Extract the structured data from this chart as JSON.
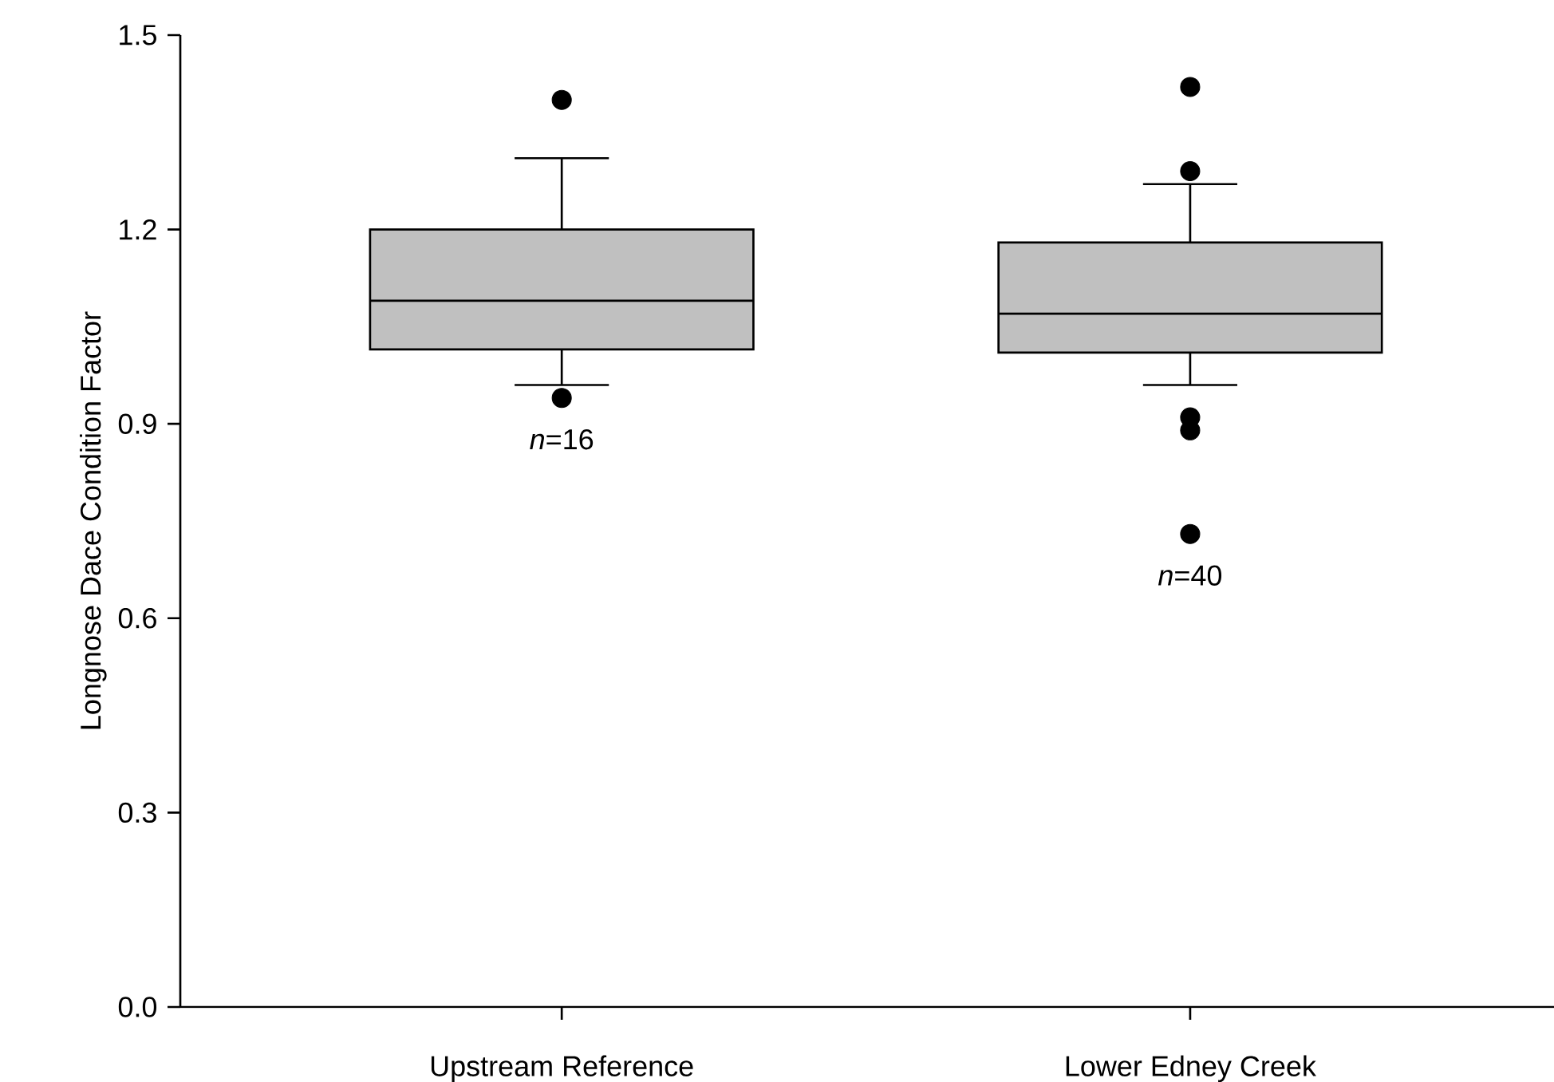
{
  "chart_data": {
    "type": "box",
    "ylabel": "Longnose Dace Condition Factor",
    "categories": [
      "Upstream Reference",
      "Lower Edney Creek"
    ],
    "boxes": [
      {
        "low": 0.96,
        "q1": 1.015,
        "median": 1.09,
        "q3": 1.2,
        "high": 1.31,
        "outliers": [
          1.4,
          0.94
        ]
      },
      {
        "low": 0.96,
        "q1": 1.01,
        "median": 1.07,
        "q3": 1.18,
        "high": 1.27,
        "outliers": [
          1.42,
          1.29,
          0.91,
          0.89,
          0.73
        ]
      }
    ],
    "color": "#c0c0c0",
    "marker": "circle",
    "ylim": [
      0,
      1.5
    ],
    "yticks": [
      {
        "value": 0,
        "label": "0.0"
      },
      {
        "value": 0.3,
        "label": "0.3"
      },
      {
        "value": 0.6,
        "label": "0.6"
      },
      {
        "value": 0.9,
        "label": "0.9"
      },
      {
        "value": 1.2,
        "label": "1.2"
      },
      {
        "value": 1.5,
        "label": "1.5"
      }
    ],
    "annotations": [
      "*n*=16",
      "*n*=40"
    ]
  }
}
